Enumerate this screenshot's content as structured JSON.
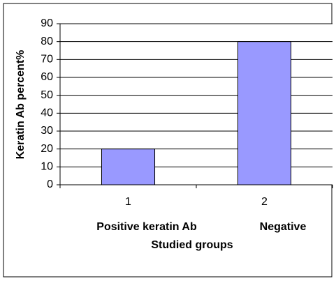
{
  "chart_data": {
    "type": "bar",
    "categories": [
      "1",
      "2"
    ],
    "values": [
      20,
      80
    ],
    "color": "#9999ff",
    "ylim": [
      0,
      90
    ],
    "yticks": [
      0,
      10,
      20,
      30,
      40,
      50,
      60,
      70,
      80,
      90
    ],
    "grid": true,
    "y_label": "Keratin Ab percent%",
    "x_label": "Studied groups",
    "annotations": [
      "Positive keratin Ab",
      "Negative"
    ]
  }
}
